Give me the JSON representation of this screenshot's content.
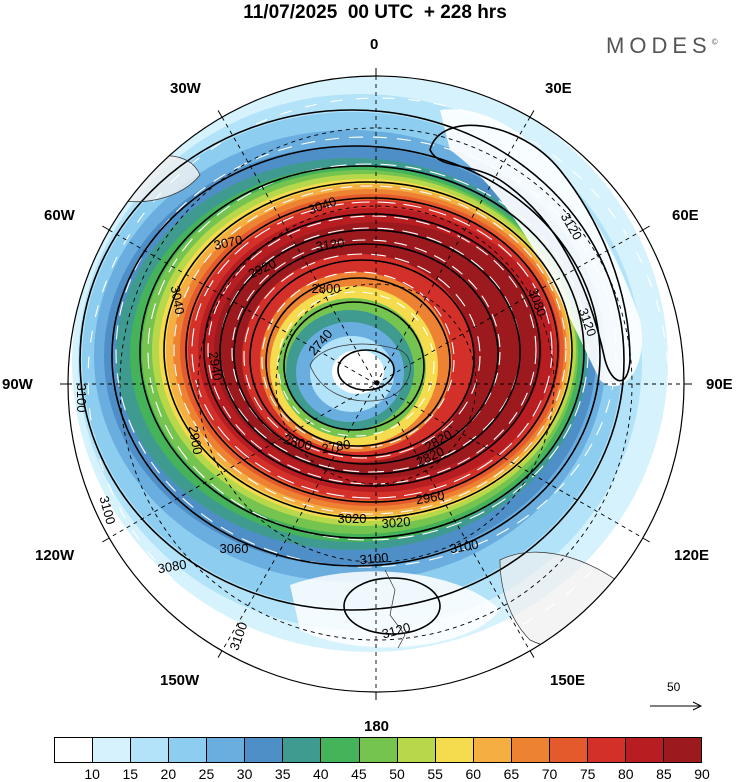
{
  "header": {
    "title": "11/07/2025  00 UTC  + 228 hrs",
    "brand": "MODES",
    "brand_mark": "©"
  },
  "longitude_labels": {
    "top": "0",
    "top_right": "30E",
    "upper_right": "60E",
    "right": "90E",
    "lower_right": "120E",
    "bottom_right": "150E",
    "bottom": "180",
    "bottom_left": "150W",
    "lower_left": "120W",
    "left": "90W",
    "upper_left": "60W",
    "top_left": "30W"
  },
  "contour_labels": [
    "3040",
    "3070",
    "3120",
    "2920",
    "2800",
    "2740",
    "3080",
    "3120",
    "3120",
    "3040",
    "2940",
    "2820",
    "2900",
    "3100",
    "3100",
    "2800",
    "2780",
    "2820",
    "3020",
    "3020",
    "2960",
    "3060",
    "3080",
    "3100",
    "3100",
    "3120",
    "3100"
  ],
  "reference_vector": {
    "value": "50"
  },
  "colorbar": {
    "colors": [
      "#ffffff",
      "#d6f2fc",
      "#b3e3f8",
      "#8dcdef",
      "#6aaee0",
      "#4f8fc8",
      "#3f9b8f",
      "#45b35a",
      "#76c450",
      "#b7d84a",
      "#f5dc4e",
      "#f5ae42",
      "#ee8233",
      "#e45a2c",
      "#d4302a",
      "#b81d22",
      "#9c1a1d"
    ],
    "ticks": [
      "10",
      "15",
      "20",
      "25",
      "30",
      "35",
      "40",
      "45",
      "50",
      "55",
      "60",
      "65",
      "70",
      "75",
      "80",
      "85",
      "90"
    ]
  },
  "colors": {
    "jet_core": "#b81d22",
    "land": "#f0f0f0",
    "contour": "#000000",
    "streamline": "#ffffff"
  }
}
